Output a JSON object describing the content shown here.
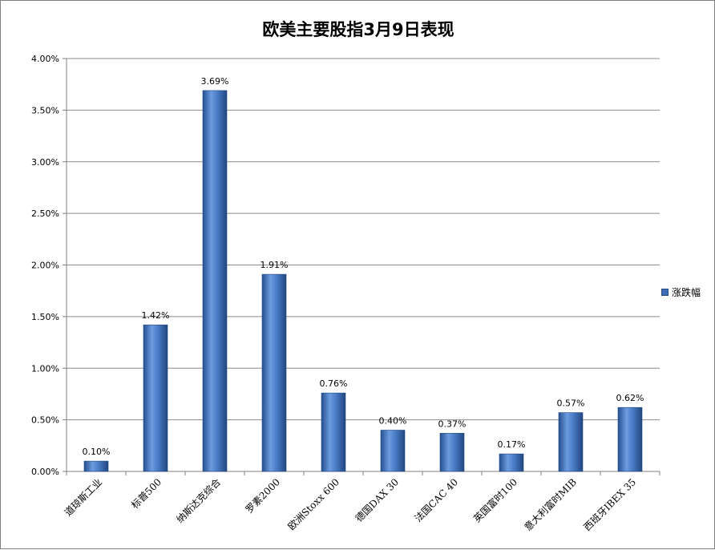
{
  "chart_data": {
    "type": "bar",
    "title": "欧美主要股指3月9日表现",
    "categories": [
      "道琼斯工业",
      "标普500",
      "纳斯达克综合",
      "罗素2000",
      "欧洲Stoxx 600",
      "德国DAX 30",
      "法国CAC 40",
      "英国富时100",
      "意大利富时MIB",
      "西班牙IBEX 35"
    ],
    "series": [
      {
        "name": "涨跌幅",
        "values": [
          0.1,
          1.42,
          3.69,
          1.91,
          0.76,
          0.4,
          0.37,
          0.17,
          0.57,
          0.62
        ]
      }
    ],
    "data_labels": [
      "0.10%",
      "1.42%",
      "3.69%",
      "1.91%",
      "0.76%",
      "0.40%",
      "0.37%",
      "0.17%",
      "0.57%",
      "0.62%"
    ],
    "y_ticks": [
      "0.00%",
      "0.50%",
      "1.00%",
      "1.50%",
      "2.00%",
      "2.50%",
      "3.00%",
      "3.50%",
      "4.00%"
    ],
    "ylim": [
      0,
      4.0
    ],
    "grid": true,
    "legend_position": "right"
  },
  "colors": {
    "bar_dark": "#24508f",
    "bar_light": "#6d9be0",
    "bar_mid": "#3a6db5",
    "grid": "#8c8c8c"
  }
}
